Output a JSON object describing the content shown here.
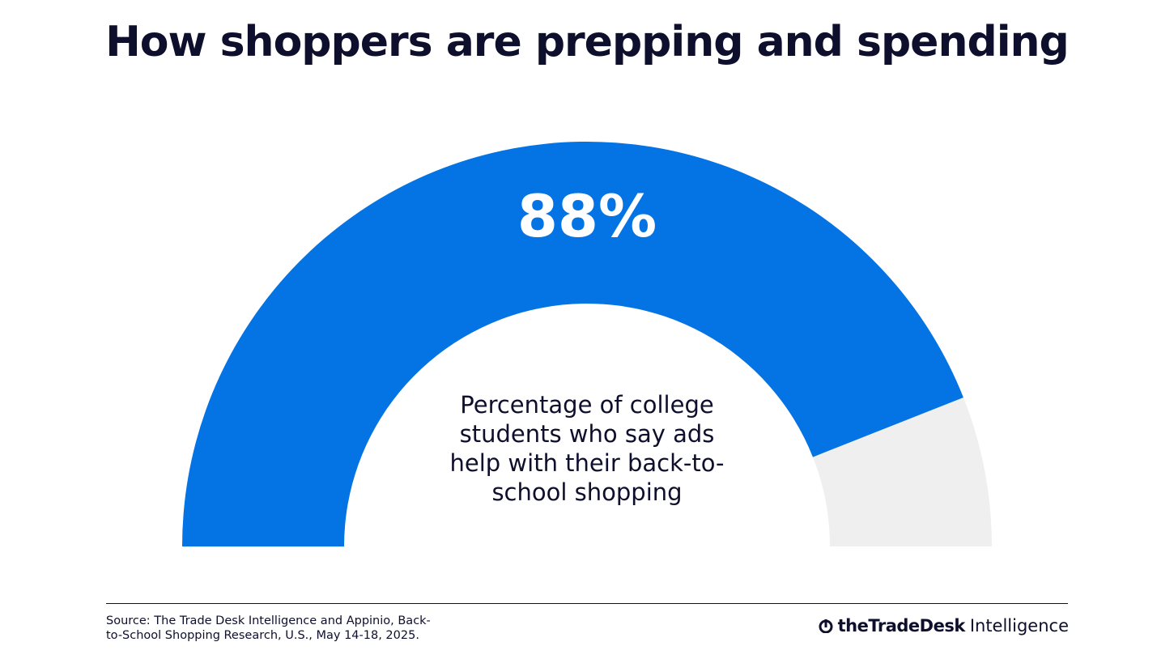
{
  "chart_data": {
    "type": "gauge",
    "title": "How shoppers are prepping and spending",
    "value": 88,
    "value_label": "88%",
    "range": [
      0,
      100
    ],
    "caption": "Percentage of college students who say ads help with their back-to-school shopping",
    "color": "#0473e3",
    "track_color": "#efefef"
  },
  "footer": {
    "source": "Source: The Trade Desk Intelligence and Appinio, Back-to-School Shopping Research, U.S., May 14-18, 2025.",
    "brand": "theTradeDesk",
    "brand_suffix": "Intelligence"
  }
}
